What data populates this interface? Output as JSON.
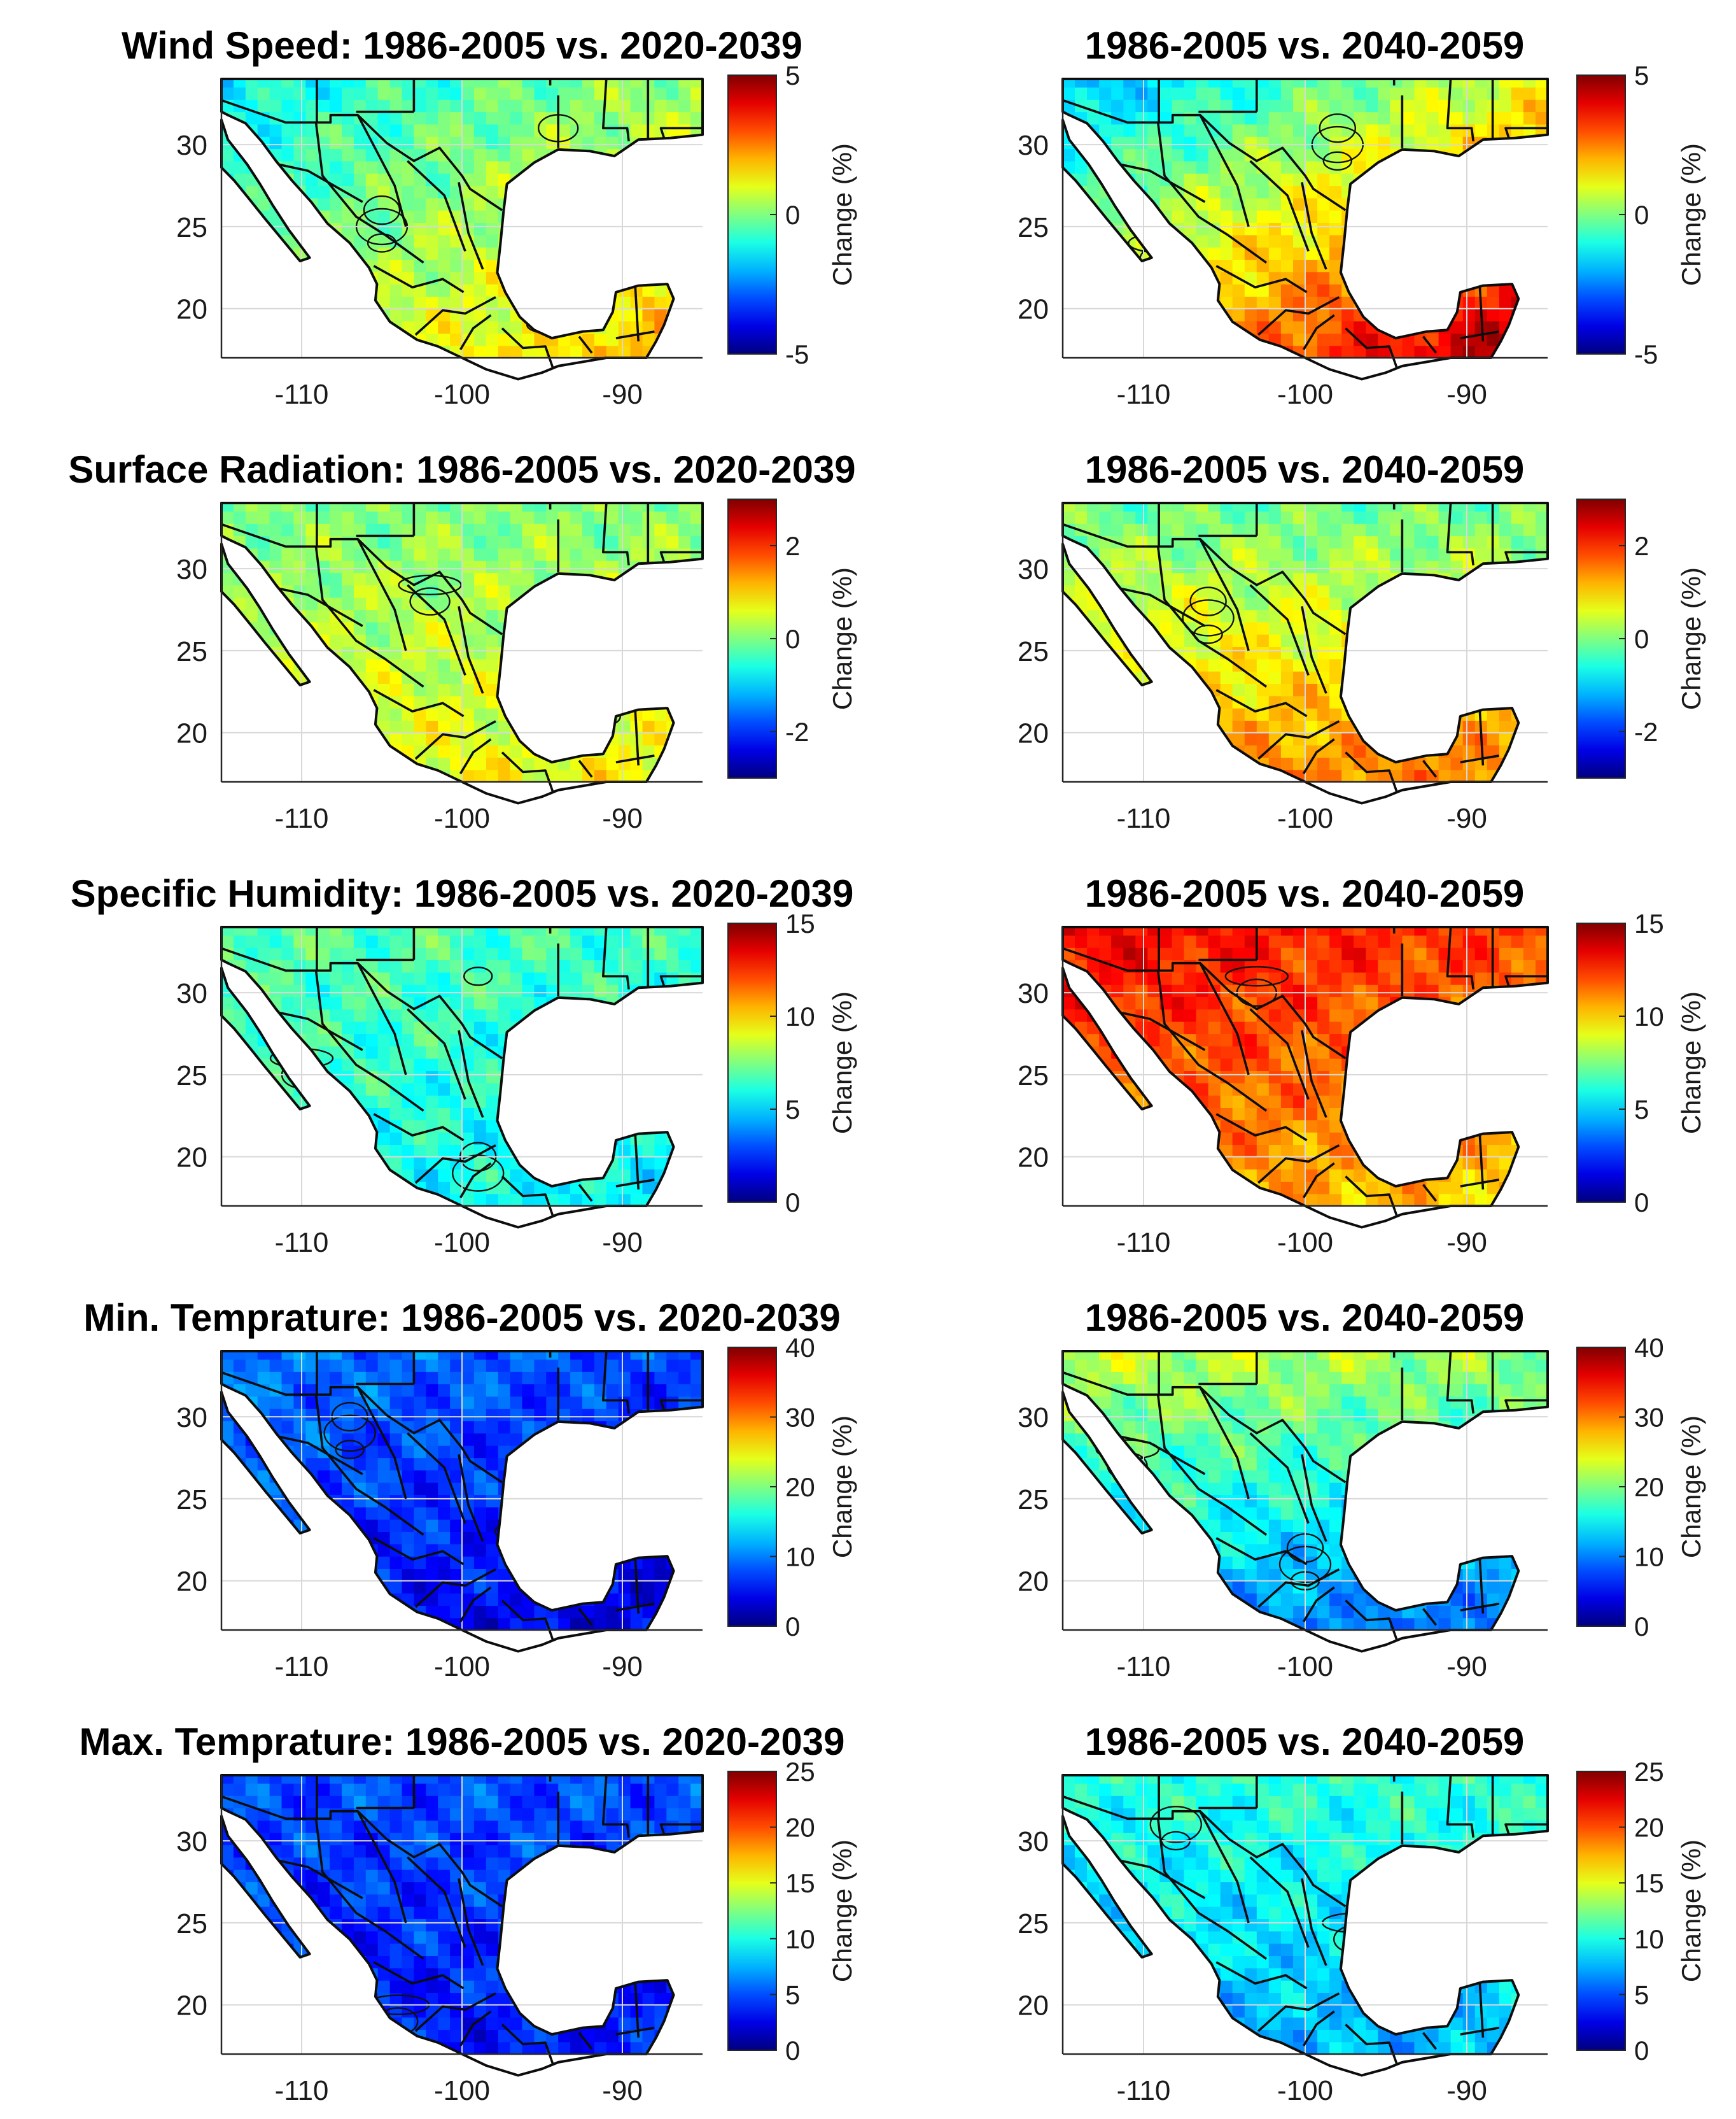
{
  "chart_data": {
    "type": "heatmap",
    "figure_rows": [
      {
        "variable": "Wind Speed",
        "colorbar": {
          "min": -5,
          "max": 5,
          "ticks": [
            -5,
            0,
            5
          ],
          "label": "Change (%)"
        },
        "panels": [
          {
            "title": "Wind Speed: 1986-2005 vs. 2020-2039",
            "period": "2020-2039",
            "north_base": 0.45,
            "south_base": 0.62,
            "east_base": 0.6,
            "west_base": 0.25
          },
          {
            "title": "1986-2005 vs. 2040-2059",
            "period": "2040-2059",
            "north_base": 0.45,
            "south_base": 0.82,
            "east_base": 0.75,
            "west_base": 0.1
          }
        ]
      },
      {
        "variable": "Surface Radiation",
        "colorbar": {
          "min": -3,
          "max": 3,
          "ticks": [
            -2,
            0,
            2
          ],
          "label": "Change (%)"
        },
        "panels": [
          {
            "title": "Surface Radiation: 1986-2005 vs. 2020-2039",
            "period": "2020-2039",
            "north_base": 0.5,
            "south_base": 0.62,
            "east_base": 0.42,
            "west_base": 0.4
          },
          {
            "title": "1986-2005 vs. 2040-2059",
            "period": "2040-2059",
            "north_base": 0.48,
            "south_base": 0.75,
            "east_base": 0.4,
            "west_base": 0.38
          }
        ]
      },
      {
        "variable": "Specific Humidity",
        "colorbar": {
          "min": 0,
          "max": 15,
          "ticks": [
            0,
            5,
            10,
            15
          ],
          "label": "Change (%)"
        },
        "panels": [
          {
            "title": "Specific Humidity: 1986-2005 vs. 2020-2039",
            "period": "2020-2039",
            "north_base": 0.45,
            "south_base": 0.38,
            "east_base": 0.4,
            "west_base": 0.48
          },
          {
            "title": "1986-2005 vs. 2040-2059",
            "period": "2040-2059",
            "north_base": 0.85,
            "south_base": 0.7,
            "east_base": 0.74,
            "west_base": 0.9
          }
        ]
      },
      {
        "variable": "Min. Temprature",
        "colorbar": {
          "min": 0,
          "max": 40,
          "ticks": [
            0,
            10,
            20,
            30,
            40
          ],
          "label": "Change (%)"
        },
        "panels": [
          {
            "title": "Min. Temprature: 1986-2005 vs. 2020-2039",
            "period": "2020-2039",
            "north_base": 0.22,
            "south_base": 0.12,
            "east_base": 0.05,
            "west_base": 0.18
          },
          {
            "title": "1986-2005 vs. 2040-2059",
            "period": "2040-2059",
            "north_base": 0.55,
            "south_base": 0.25,
            "east_base": 0.2,
            "west_base": 0.3
          }
        ]
      },
      {
        "variable": "Max. Temprature",
        "colorbar": {
          "min": 0,
          "max": 25,
          "ticks": [
            0,
            5,
            10,
            15,
            20,
            25
          ],
          "label": "Change (%)"
        },
        "panels": [
          {
            "title": "Max. Temprature: 1986-2005 vs. 2020-2039",
            "period": "2020-2039",
            "north_base": 0.2,
            "south_base": 0.14,
            "east_base": 0.18,
            "west_base": 0.16
          },
          {
            "title": "1986-2005 vs. 2040-2059",
            "period": "2040-2059",
            "north_base": 0.42,
            "south_base": 0.3,
            "east_base": 0.32,
            "west_base": 0.3
          }
        ]
      }
    ],
    "x_axis": {
      "ticks": [
        -110,
        -100,
        -90
      ],
      "range": [
        -115,
        -85
      ]
    },
    "y_axis": {
      "ticks": [
        20,
        25,
        30
      ],
      "range": [
        17,
        34
      ]
    },
    "grid": true,
    "colormap": "jet"
  }
}
